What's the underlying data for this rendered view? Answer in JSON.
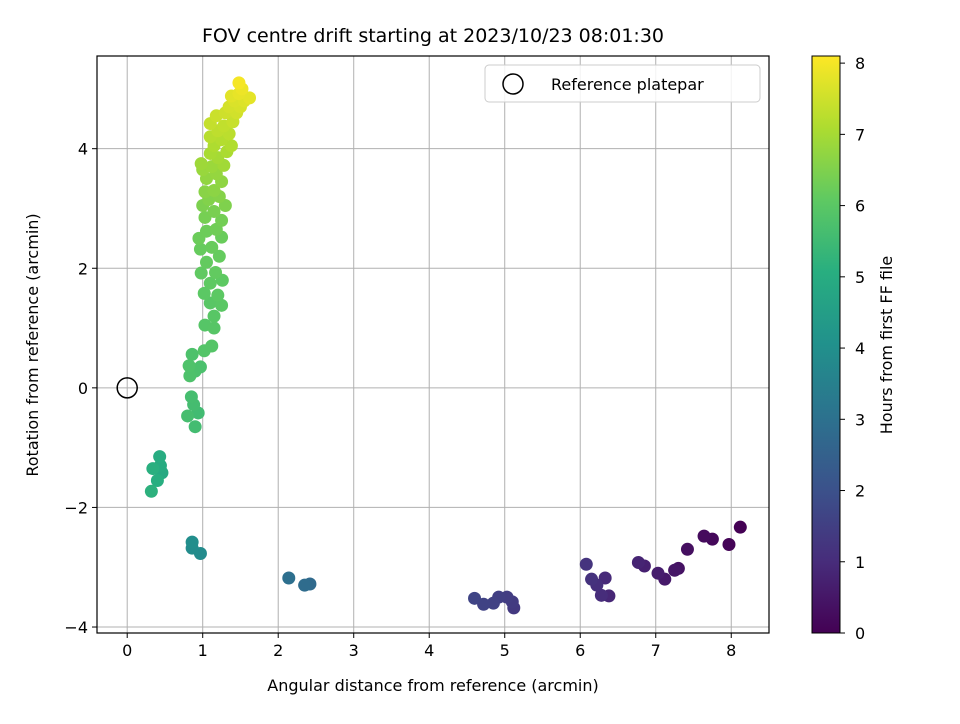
{
  "chart_data": {
    "type": "scatter",
    "title": "FOV centre drift starting at 2023/10/23 08:01:30",
    "xlabel": "Angular distance from reference (arcmin)",
    "ylabel": "Rotation from reference (arcmin)",
    "xlim": [
      -0.4,
      8.5
    ],
    "ylim": [
      -4.1,
      5.55
    ],
    "xticks": [
      "0",
      "1",
      "2",
      "3",
      "4",
      "5",
      "6",
      "7",
      "8"
    ],
    "yticks": [
      "−4",
      "−2",
      "0",
      "2",
      "4"
    ],
    "grid": true,
    "legend": {
      "location": "upper right",
      "entries": [
        {
          "label": "Reference platepar",
          "marker": "open-circle",
          "color": "#000000"
        }
      ]
    },
    "reference_point": {
      "x": 0,
      "y": 0
    },
    "colorbar": {
      "label": "Hours from first FF file",
      "range": [
        0,
        8.1
      ],
      "ticks": [
        "0",
        "1",
        "2",
        "3",
        "4",
        "5",
        "6",
        "7",
        "8"
      ],
      "colormap": "viridis"
    },
    "series": [
      {
        "color_by": "hours",
        "points": [
          {
            "x": 8.12,
            "y": -2.33,
            "c": 0.0
          },
          {
            "x": 7.97,
            "y": -2.62,
            "c": 0.08
          },
          {
            "x": 7.75,
            "y": -2.53,
            "c": 0.16
          },
          {
            "x": 7.64,
            "y": -2.48,
            "c": 0.24
          },
          {
            "x": 7.42,
            "y": -2.7,
            "c": 0.32
          },
          {
            "x": 7.3,
            "y": -3.02,
            "c": 0.4
          },
          {
            "x": 7.25,
            "y": -3.05,
            "c": 0.48
          },
          {
            "x": 7.12,
            "y": -3.2,
            "c": 0.56
          },
          {
            "x": 7.03,
            "y": -3.1,
            "c": 0.64
          },
          {
            "x": 6.85,
            "y": -2.98,
            "c": 0.72
          },
          {
            "x": 6.77,
            "y": -2.92,
            "c": 0.8
          },
          {
            "x": 6.38,
            "y": -3.48,
            "c": 0.88
          },
          {
            "x": 6.33,
            "y": -3.18,
            "c": 0.95
          },
          {
            "x": 6.28,
            "y": -3.47,
            "c": 1.02
          },
          {
            "x": 6.22,
            "y": -3.3,
            "c": 1.08
          },
          {
            "x": 6.15,
            "y": -3.2,
            "c": 1.14
          },
          {
            "x": 6.08,
            "y": -2.95,
            "c": 1.2
          },
          {
            "x": 5.12,
            "y": -3.68,
            "c": 1.35
          },
          {
            "x": 5.1,
            "y": -3.58,
            "c": 1.4
          },
          {
            "x": 5.03,
            "y": -3.5,
            "c": 1.45
          },
          {
            "x": 4.92,
            "y": -3.5,
            "c": 1.5
          },
          {
            "x": 4.85,
            "y": -3.6,
            "c": 1.55
          },
          {
            "x": 4.72,
            "y": -3.62,
            "c": 1.6
          },
          {
            "x": 4.6,
            "y": -3.52,
            "c": 1.65
          },
          {
            "x": 2.42,
            "y": -3.28,
            "c": 2.8
          },
          {
            "x": 2.35,
            "y": -3.3,
            "c": 2.85
          },
          {
            "x": 2.14,
            "y": -3.18,
            "c": 2.95
          },
          {
            "x": 0.97,
            "y": -2.77,
            "c": 3.85
          },
          {
            "x": 0.86,
            "y": -2.68,
            "c": 3.9
          },
          {
            "x": 0.86,
            "y": -2.58,
            "c": 3.95
          },
          {
            "x": 0.46,
            "y": -1.42,
            "c": 4.9
          },
          {
            "x": 0.44,
            "y": -1.3,
            "c": 4.95
          },
          {
            "x": 0.43,
            "y": -1.15,
            "c": 5.0
          },
          {
            "x": 0.4,
            "y": -1.55,
            "c": 5.05
          },
          {
            "x": 0.34,
            "y": -1.35,
            "c": 5.1
          },
          {
            "x": 0.32,
            "y": -1.73,
            "c": 5.15
          },
          {
            "x": 0.94,
            "y": -0.42,
            "c": 5.55
          },
          {
            "x": 0.9,
            "y": -0.65,
            "c": 5.58
          },
          {
            "x": 0.88,
            "y": -0.28,
            "c": 5.6
          },
          {
            "x": 0.85,
            "y": -0.15,
            "c": 5.62
          },
          {
            "x": 0.8,
            "y": -0.47,
            "c": 5.64
          },
          {
            "x": 0.97,
            "y": 0.35,
            "c": 5.72
          },
          {
            "x": 0.9,
            "y": 0.28,
            "c": 5.74
          },
          {
            "x": 0.86,
            "y": 0.56,
            "c": 5.76
          },
          {
            "x": 0.83,
            "y": 0.2,
            "c": 5.78
          },
          {
            "x": 0.82,
            "y": 0.37,
            "c": 5.8
          },
          {
            "x": 1.02,
            "y": 0.62,
            "c": 5.88
          },
          {
            "x": 1.12,
            "y": 0.7,
            "c": 5.9
          },
          {
            "x": 1.03,
            "y": 1.05,
            "c": 5.92
          },
          {
            "x": 1.15,
            "y": 1.0,
            "c": 5.94
          },
          {
            "x": 1.15,
            "y": 1.2,
            "c": 5.96
          },
          {
            "x": 1.1,
            "y": 1.42,
            "c": 5.98
          },
          {
            "x": 1.25,
            "y": 1.38,
            "c": 6.0
          },
          {
            "x": 1.02,
            "y": 1.58,
            "c": 6.02
          },
          {
            "x": 1.2,
            "y": 1.55,
            "c": 6.04
          },
          {
            "x": 1.26,
            "y": 1.8,
            "c": 6.06
          },
          {
            "x": 1.1,
            "y": 1.75,
            "c": 6.08
          },
          {
            "x": 0.98,
            "y": 1.92,
            "c": 6.1
          },
          {
            "x": 1.17,
            "y": 1.93,
            "c": 6.12
          },
          {
            "x": 1.05,
            "y": 2.1,
            "c": 6.14
          },
          {
            "x": 1.22,
            "y": 2.2,
            "c": 6.16
          },
          {
            "x": 0.97,
            "y": 2.32,
            "c": 6.18
          },
          {
            "x": 1.12,
            "y": 2.35,
            "c": 6.2
          },
          {
            "x": 1.25,
            "y": 2.52,
            "c": 6.22
          },
          {
            "x": 0.95,
            "y": 2.5,
            "c": 6.24
          },
          {
            "x": 1.05,
            "y": 2.62,
            "c": 6.26
          },
          {
            "x": 1.18,
            "y": 2.65,
            "c": 6.3
          },
          {
            "x": 1.25,
            "y": 2.8,
            "c": 6.34
          },
          {
            "x": 1.03,
            "y": 2.85,
            "c": 6.38
          },
          {
            "x": 1.15,
            "y": 2.95,
            "c": 6.42
          },
          {
            "x": 1.0,
            "y": 3.05,
            "c": 6.46
          },
          {
            "x": 1.3,
            "y": 3.05,
            "c": 6.5
          },
          {
            "x": 1.08,
            "y": 3.15,
            "c": 6.54
          },
          {
            "x": 1.22,
            "y": 3.2,
            "c": 6.58
          },
          {
            "x": 1.03,
            "y": 3.28,
            "c": 6.62
          },
          {
            "x": 1.15,
            "y": 3.3,
            "c": 6.66
          },
          {
            "x": 1.25,
            "y": 3.45,
            "c": 6.7
          },
          {
            "x": 1.05,
            "y": 3.5,
            "c": 6.74
          },
          {
            "x": 1.18,
            "y": 3.58,
            "c": 6.78
          },
          {
            "x": 1.0,
            "y": 3.65,
            "c": 6.82
          },
          {
            "x": 1.12,
            "y": 3.7,
            "c": 6.86
          },
          {
            "x": 0.98,
            "y": 3.75,
            "c": 6.9
          },
          {
            "x": 1.28,
            "y": 3.72,
            "c": 6.94
          },
          {
            "x": 1.2,
            "y": 3.85,
            "c": 6.98
          },
          {
            "x": 1.1,
            "y": 3.92,
            "c": 7.02
          },
          {
            "x": 1.32,
            "y": 3.95,
            "c": 7.06
          },
          {
            "x": 1.15,
            "y": 4.05,
            "c": 7.1
          },
          {
            "x": 1.38,
            "y": 4.05,
            "c": 7.14
          },
          {
            "x": 1.25,
            "y": 4.15,
            "c": 7.18
          },
          {
            "x": 1.1,
            "y": 4.2,
            "c": 7.22
          },
          {
            "x": 1.35,
            "y": 4.25,
            "c": 7.26
          },
          {
            "x": 1.2,
            "y": 4.3,
            "c": 7.3
          },
          {
            "x": 1.28,
            "y": 4.38,
            "c": 7.34
          },
          {
            "x": 1.1,
            "y": 4.42,
            "c": 7.38
          },
          {
            "x": 1.4,
            "y": 4.45,
            "c": 7.42
          },
          {
            "x": 1.18,
            "y": 4.55,
            "c": 7.46
          },
          {
            "x": 1.3,
            "y": 4.6,
            "c": 7.5
          },
          {
            "x": 1.45,
            "y": 4.6,
            "c": 7.54
          },
          {
            "x": 1.35,
            "y": 4.7,
            "c": 7.58
          },
          {
            "x": 1.5,
            "y": 4.7,
            "c": 7.62
          },
          {
            "x": 1.42,
            "y": 4.8,
            "c": 7.66
          },
          {
            "x": 1.55,
            "y": 4.8,
            "c": 7.7
          },
          {
            "x": 1.38,
            "y": 4.88,
            "c": 7.74
          },
          {
            "x": 1.62,
            "y": 4.85,
            "c": 7.78
          },
          {
            "x": 1.48,
            "y": 4.92,
            "c": 7.82
          },
          {
            "x": 1.52,
            "y": 5.0,
            "c": 7.9
          },
          {
            "x": 1.48,
            "y": 5.1,
            "c": 8.0
          }
        ]
      }
    ]
  }
}
